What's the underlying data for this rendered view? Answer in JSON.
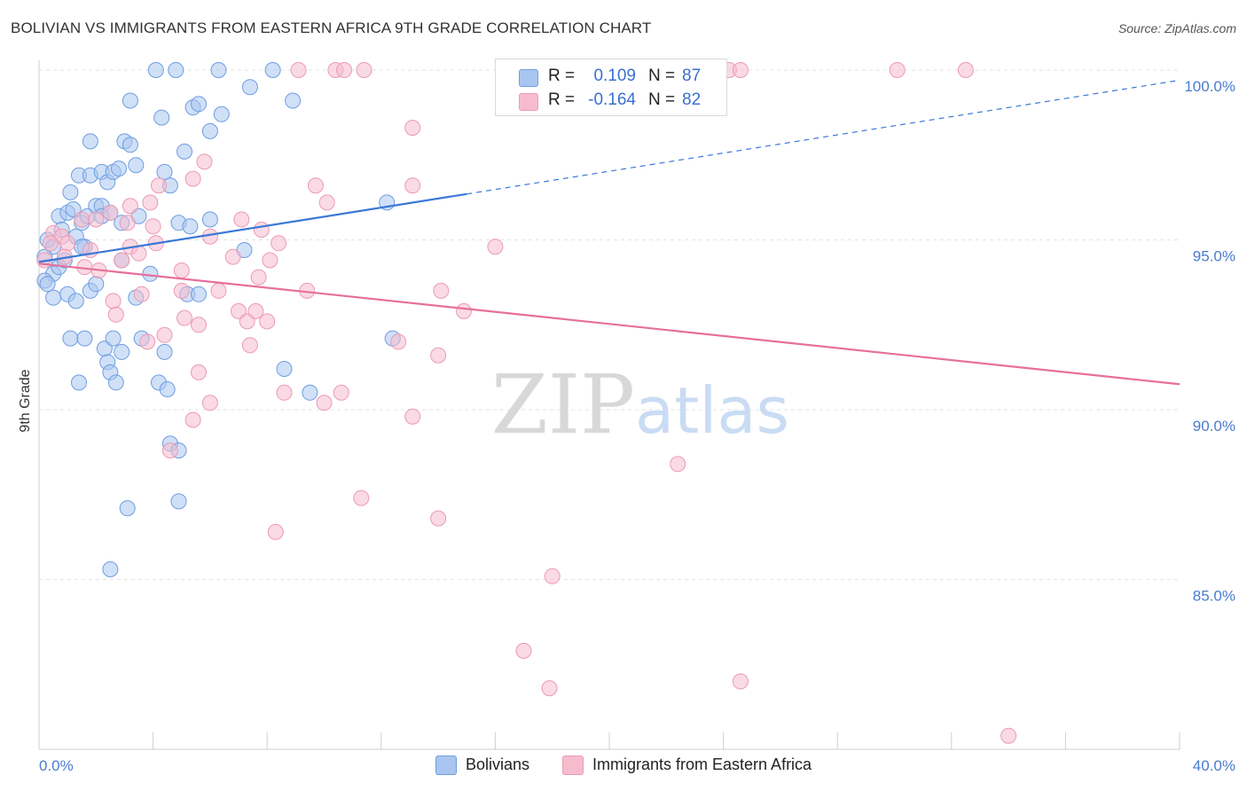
{
  "title": "BOLIVIAN VS IMMIGRANTS FROM EASTERN AFRICA 9TH GRADE CORRELATION CHART",
  "source": "Source: ZipAtlas.com",
  "watermark": {
    "zip": "ZIP",
    "atlas": "atlas"
  },
  "stats": {
    "r_label": "R =",
    "n_label": "N =",
    "rows": [
      {
        "r": "0.109",
        "n": "87"
      },
      {
        "r": "-0.164",
        "n": "82"
      }
    ]
  },
  "legend": [
    "Bolivians",
    "Immigrants from Eastern Africa"
  ],
  "colors": {
    "blue_fill": "#a9c6f0",
    "blue_stroke": "#6f9de0",
    "blue_line": "#3a78d8",
    "pink_fill": "#f6bccd",
    "pink_stroke": "#ec9ab4",
    "pink_line": "#e76f9b",
    "grid": "#e3e3e3",
    "tick_label": "#4a7bd0"
  },
  "chart_data": {
    "type": "scatter",
    "xlabel": "",
    "ylabel": "9th Grade",
    "xlim": [
      0,
      40
    ],
    "ylim": [
      80.5,
      100.5
    ],
    "x_tick_labels": [
      {
        "value": 0,
        "label": "0.0%"
      },
      {
        "value": 40,
        "label": "40.0%"
      }
    ],
    "y_tick_labels": [
      {
        "value": 100,
        "label": "100.0%"
      },
      {
        "value": 95,
        "label": "95.0%"
      },
      {
        "value": 90,
        "label": "90.0%"
      },
      {
        "value": 85,
        "label": "85.0%"
      }
    ],
    "series": [
      {
        "name": "Bolivians",
        "color": "blue",
        "trend": {
          "x0": 0.0,
          "y0": 94.35,
          "x1": 15.0,
          "y1": 96.35,
          "x_dash_end": 40.0,
          "y_dash_end": 99.7
        },
        "points": [
          [
            4.1,
            100
          ],
          [
            4.8,
            100
          ],
          [
            6.3,
            100
          ],
          [
            8.2,
            100
          ],
          [
            3.2,
            99.1
          ],
          [
            4.3,
            98.6
          ],
          [
            5.4,
            98.9
          ],
          [
            5.6,
            99.0
          ],
          [
            6.4,
            98.7
          ],
          [
            7.4,
            99.5
          ],
          [
            8.9,
            99.1
          ],
          [
            1.8,
            97.9
          ],
          [
            3.0,
            97.9
          ],
          [
            3.2,
            97.8
          ],
          [
            3.4,
            97.2
          ],
          [
            4.4,
            97.0
          ],
          [
            5.1,
            97.6
          ],
          [
            6.0,
            98.2
          ],
          [
            1.4,
            96.9
          ],
          [
            1.8,
            96.9
          ],
          [
            2.2,
            97.0
          ],
          [
            2.4,
            96.7
          ],
          [
            2.6,
            97.0
          ],
          [
            2.8,
            97.1
          ],
          [
            4.6,
            96.6
          ],
          [
            1.1,
            96.4
          ],
          [
            0.7,
            95.7
          ],
          [
            1.0,
            95.8
          ],
          [
            1.2,
            95.9
          ],
          [
            1.5,
            95.5
          ],
          [
            1.7,
            95.7
          ],
          [
            2.0,
            96.0
          ],
          [
            2.2,
            96.0
          ],
          [
            2.2,
            95.7
          ],
          [
            2.5,
            95.8
          ],
          [
            2.9,
            95.5
          ],
          [
            3.5,
            95.7
          ],
          [
            4.9,
            95.5
          ],
          [
            5.3,
            95.4
          ],
          [
            6.0,
            95.6
          ],
          [
            12.2,
            96.1
          ],
          [
            0.3,
            95.0
          ],
          [
            0.5,
            94.8
          ],
          [
            0.8,
            95.3
          ],
          [
            1.3,
            95.1
          ],
          [
            1.6,
            94.8
          ],
          [
            0.2,
            94.5
          ],
          [
            0.5,
            94.0
          ],
          [
            0.7,
            94.2
          ],
          [
            0.9,
            94.4
          ],
          [
            2.9,
            94.4
          ],
          [
            1.5,
            94.8
          ],
          [
            7.2,
            94.7
          ],
          [
            0.2,
            93.8
          ],
          [
            0.3,
            93.7
          ],
          [
            0.5,
            93.3
          ],
          [
            1.0,
            93.4
          ],
          [
            1.3,
            93.2
          ],
          [
            1.8,
            93.5
          ],
          [
            2.0,
            93.7
          ],
          [
            3.4,
            93.3
          ],
          [
            3.9,
            94.0
          ],
          [
            5.2,
            93.4
          ],
          [
            5.6,
            93.4
          ],
          [
            1.1,
            92.1
          ],
          [
            1.6,
            92.1
          ],
          [
            2.3,
            91.8
          ],
          [
            2.6,
            92.1
          ],
          [
            2.9,
            91.7
          ],
          [
            3.6,
            92.1
          ],
          [
            4.4,
            91.7
          ],
          [
            12.4,
            92.1
          ],
          [
            2.4,
            91.4
          ],
          [
            2.5,
            91.1
          ],
          [
            2.7,
            90.8
          ],
          [
            1.4,
            90.8
          ],
          [
            4.2,
            90.8
          ],
          [
            4.5,
            90.6
          ],
          [
            8.6,
            91.2
          ],
          [
            9.5,
            90.5
          ],
          [
            4.6,
            89.0
          ],
          [
            4.9,
            88.8
          ],
          [
            3.1,
            87.1
          ],
          [
            4.9,
            87.3
          ],
          [
            2.5,
            85.3
          ]
        ]
      },
      {
        "name": "Immigrants from Eastern Africa",
        "color": "pink",
        "trend": {
          "x0": 0.0,
          "y0": 94.3,
          "x1": 40.0,
          "y1": 90.75
        },
        "points": [
          [
            9.1,
            100
          ],
          [
            10.4,
            100
          ],
          [
            10.7,
            100
          ],
          [
            11.4,
            100
          ],
          [
            24.2,
            100
          ],
          [
            24.6,
            100
          ],
          [
            30.1,
            100
          ],
          [
            32.5,
            100
          ],
          [
            13.1,
            98.3
          ],
          [
            5.8,
            97.3
          ],
          [
            5.4,
            96.8
          ],
          [
            4.2,
            96.6
          ],
          [
            9.7,
            96.6
          ],
          [
            13.1,
            96.6
          ],
          [
            3.2,
            96.0
          ],
          [
            3.9,
            96.1
          ],
          [
            10.1,
            96.1
          ],
          [
            0.5,
            95.2
          ],
          [
            0.8,
            95.1
          ],
          [
            1.5,
            95.6
          ],
          [
            2.0,
            95.6
          ],
          [
            2.5,
            95.8
          ],
          [
            3.1,
            95.5
          ],
          [
            4.0,
            95.4
          ],
          [
            7.1,
            95.6
          ],
          [
            7.8,
            95.3
          ],
          [
            6.0,
            95.1
          ],
          [
            0.4,
            94.9
          ],
          [
            1.0,
            94.9
          ],
          [
            1.8,
            94.7
          ],
          [
            3.2,
            94.8
          ],
          [
            4.1,
            94.9
          ],
          [
            8.4,
            94.9
          ],
          [
            16.0,
            94.8
          ],
          [
            0.2,
            94.4
          ],
          [
            0.9,
            94.5
          ],
          [
            1.6,
            94.2
          ],
          [
            2.1,
            94.1
          ],
          [
            2.9,
            94.4
          ],
          [
            3.5,
            94.6
          ],
          [
            6.8,
            94.5
          ],
          [
            8.1,
            94.4
          ],
          [
            5.0,
            94.1
          ],
          [
            7.7,
            93.9
          ],
          [
            3.6,
            93.4
          ],
          [
            5.0,
            93.5
          ],
          [
            6.3,
            93.5
          ],
          [
            7.0,
            92.9
          ],
          [
            9.4,
            93.5
          ],
          [
            14.1,
            93.5
          ],
          [
            2.6,
            93.2
          ],
          [
            2.7,
            92.8
          ],
          [
            5.6,
            92.5
          ],
          [
            7.3,
            92.6
          ],
          [
            8.0,
            92.6
          ],
          [
            14.9,
            92.9
          ],
          [
            7.6,
            92.9
          ],
          [
            3.8,
            92.0
          ],
          [
            4.4,
            92.2
          ],
          [
            5.1,
            92.7
          ],
          [
            7.4,
            91.9
          ],
          [
            12.6,
            92.0
          ],
          [
            14.0,
            91.6
          ],
          [
            5.6,
            91.1
          ],
          [
            8.6,
            90.5
          ],
          [
            10.0,
            90.2
          ],
          [
            10.6,
            90.5
          ],
          [
            6.0,
            90.2
          ],
          [
            5.4,
            89.7
          ],
          [
            13.1,
            89.8
          ],
          [
            4.6,
            88.8
          ],
          [
            22.4,
            88.4
          ],
          [
            11.3,
            87.4
          ],
          [
            14.0,
            86.8
          ],
          [
            8.3,
            86.4
          ],
          [
            18.0,
            85.1
          ],
          [
            17.0,
            82.9
          ],
          [
            17.9,
            81.8
          ],
          [
            24.6,
            82.0
          ],
          [
            34.0,
            80.4
          ]
        ]
      }
    ]
  }
}
